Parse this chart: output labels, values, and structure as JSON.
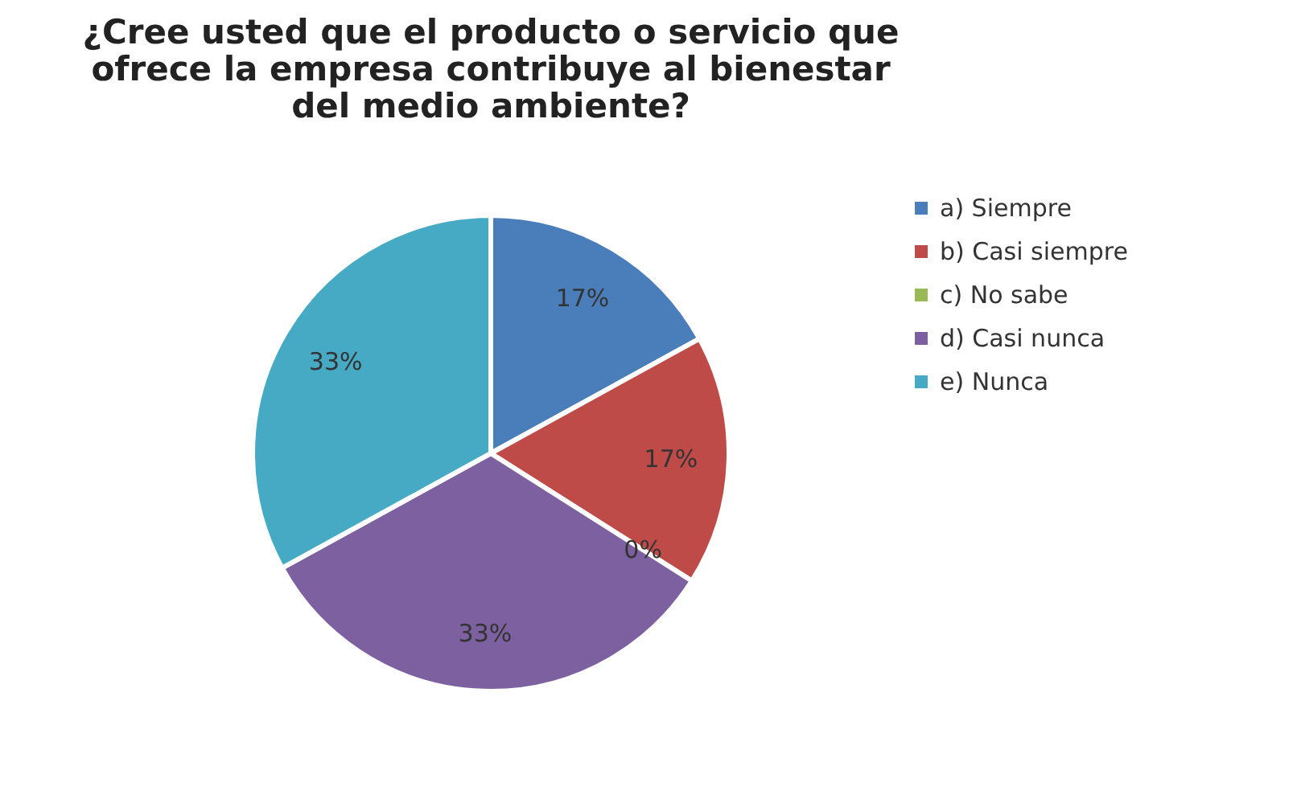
{
  "chart_data": {
    "type": "pie",
    "title": "¿Cree usted que el producto o servicio que ofrece la empresa contribuye al bienestar del medio ambiente?",
    "categories": [
      "a) Siempre",
      "b) Casi siempre",
      "c) No sabe",
      "d) Casi nunca",
      "e) Nunca"
    ],
    "values": [
      17,
      17,
      0,
      33,
      33
    ],
    "colors": [
      "#4a7ebb",
      "#be4b48",
      "#98b954",
      "#7d60a0",
      "#46aac5"
    ],
    "value_labels": [
      "17%",
      "17%",
      "0%",
      "33%",
      "33%"
    ],
    "legend": "right"
  }
}
